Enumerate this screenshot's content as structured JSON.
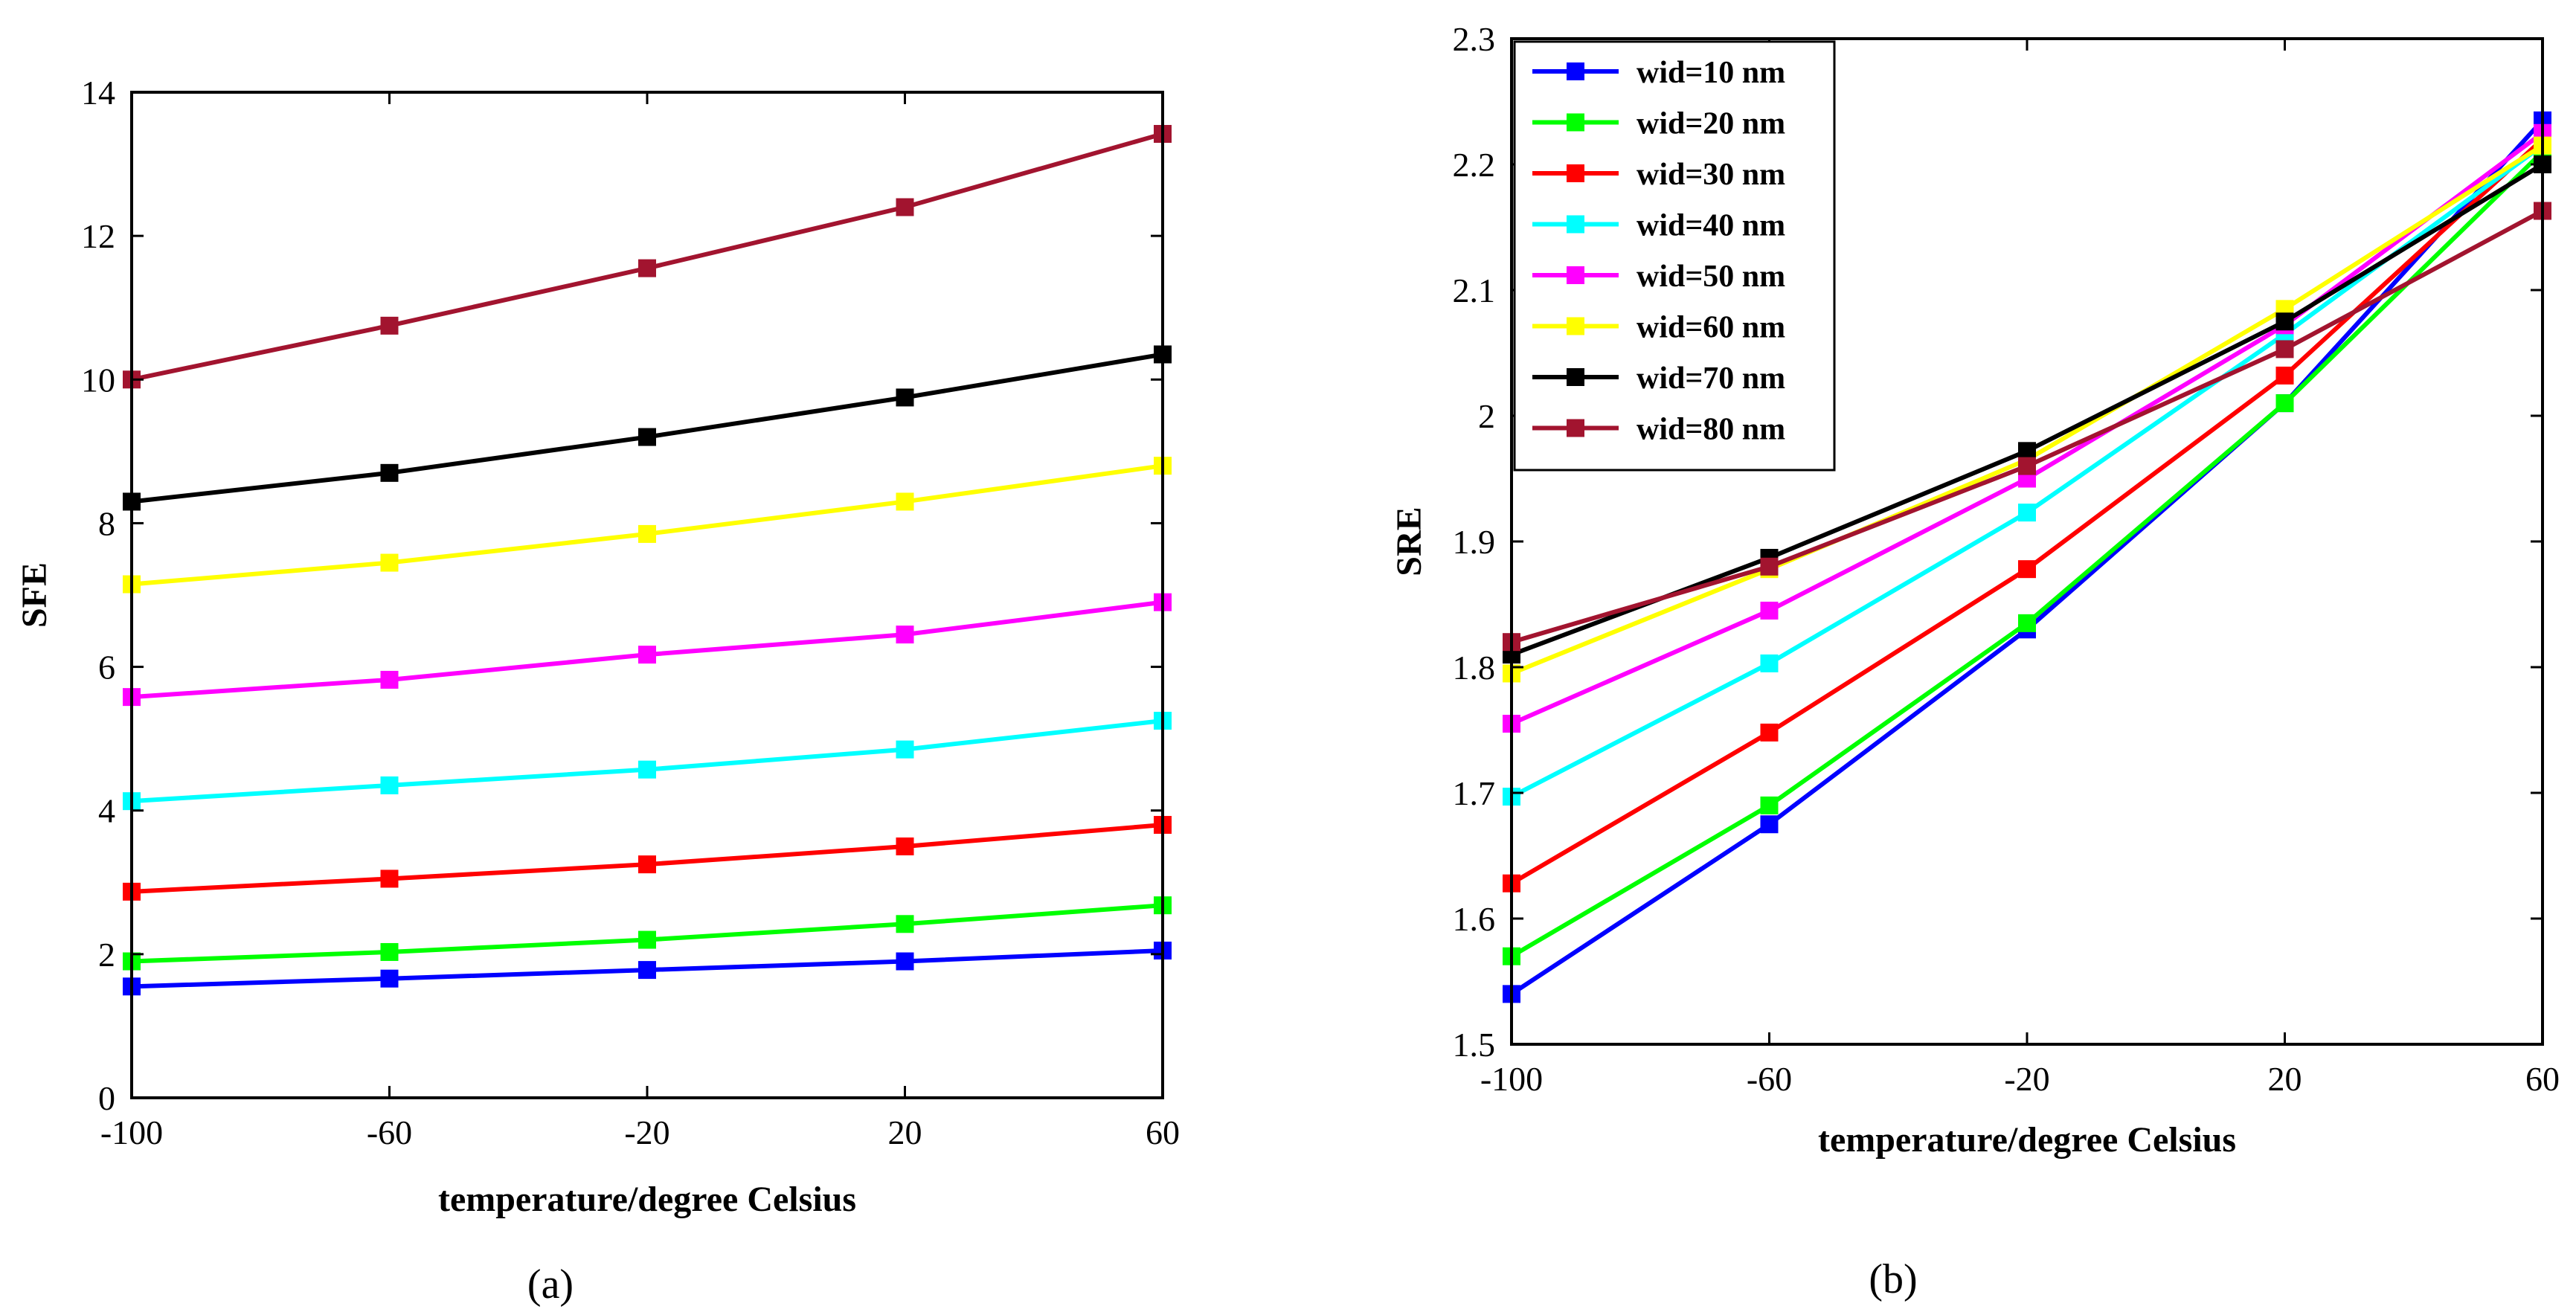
{
  "chart_data": [
    {
      "type": "line",
      "panel_label": "(a)",
      "title": "",
      "xlabel": "temperature/degree Celsius",
      "ylabel": "SFE",
      "x": [
        -100,
        -60,
        -20,
        20,
        60
      ],
      "xticks": [
        -100,
        -60,
        -20,
        20,
        60
      ],
      "xtick_labels": [
        "-100",
        "-60",
        "-20",
        "20",
        "60"
      ],
      "ylim": [
        0,
        14
      ],
      "yticks": [
        0,
        2,
        4,
        6,
        8,
        10,
        12,
        14
      ],
      "ytick_labels": [
        "0",
        "2",
        "4",
        "6",
        "8",
        "10",
        "12",
        "14"
      ],
      "grid": false,
      "legend": "none",
      "series": [
        {
          "name": "wid=10 nm",
          "color": "#0000ff",
          "values": [
            1.55,
            1.66,
            1.78,
            1.9,
            2.05
          ]
        },
        {
          "name": "wid=20 nm",
          "color": "#00ff00",
          "values": [
            1.9,
            2.03,
            2.2,
            2.42,
            2.68
          ]
        },
        {
          "name": "wid=30 nm",
          "color": "#ff0000",
          "values": [
            2.87,
            3.05,
            3.25,
            3.5,
            3.8
          ]
        },
        {
          "name": "wid=40 nm",
          "color": "#00ffff",
          "values": [
            4.13,
            4.35,
            4.57,
            4.85,
            5.25
          ]
        },
        {
          "name": "wid=50 nm",
          "color": "#ff00ff",
          "values": [
            5.58,
            5.82,
            6.17,
            6.45,
            6.9
          ]
        },
        {
          "name": "wid=60 nm",
          "color": "#ffff00",
          "values": [
            7.15,
            7.45,
            7.85,
            8.3,
            8.8
          ]
        },
        {
          "name": "wid=70 nm",
          "color": "#000000",
          "values": [
            8.3,
            8.7,
            9.2,
            9.75,
            10.35
          ]
        },
        {
          "name": "wid=80 nm",
          "color": "#a2142f",
          "values": [
            10.0,
            10.75,
            11.55,
            12.4,
            13.42
          ]
        }
      ]
    },
    {
      "type": "line",
      "panel_label": "(b)",
      "title": "",
      "xlabel": "temperature/degree Celsius",
      "ylabel": "SRE",
      "x": [
        -100,
        -60,
        -20,
        20,
        60
      ],
      "xticks": [
        -100,
        -60,
        -20,
        20,
        60
      ],
      "xtick_labels": [
        "-100",
        "-60",
        "-20",
        "20",
        "60"
      ],
      "ylim": [
        1.5,
        2.3
      ],
      "yticks": [
        1.5,
        1.6,
        1.7,
        1.8,
        1.9,
        2.0,
        2.1,
        2.2,
        2.3
      ],
      "ytick_labels": [
        "1.5",
        "1.6",
        "1.7",
        "1.8",
        "1.9",
        "2",
        "2.1",
        "2.2",
        "2.3"
      ],
      "grid": false,
      "legend": "top-left",
      "series": [
        {
          "name": "wid=10 nm",
          "color": "#0000ff",
          "values": [
            1.54,
            1.675,
            1.83,
            2.01,
            2.235
          ]
        },
        {
          "name": "wid=20 nm",
          "color": "#00ff00",
          "values": [
            1.57,
            1.69,
            1.835,
            2.01,
            2.21
          ]
        },
        {
          "name": "wid=30 nm",
          "color": "#ff0000",
          "values": [
            1.628,
            1.748,
            1.878,
            2.032,
            2.22
          ]
        },
        {
          "name": "wid=40 nm",
          "color": "#00ffff",
          "values": [
            1.697,
            1.803,
            1.923,
            2.065,
            2.215
          ]
        },
        {
          "name": "wid=50 nm",
          "color": "#ff00ff",
          "values": [
            1.755,
            1.845,
            1.95,
            2.072,
            2.225
          ]
        },
        {
          "name": "wid=60 nm",
          "color": "#ffff00",
          "values": [
            1.795,
            1.878,
            1.965,
            2.085,
            2.215
          ]
        },
        {
          "name": "wid=70 nm",
          "color": "#000000",
          "values": [
            1.81,
            1.887,
            1.972,
            2.075,
            2.2
          ]
        },
        {
          "name": "wid=80 nm",
          "color": "#a2142f",
          "values": [
            1.82,
            1.88,
            1.96,
            2.053,
            2.163
          ]
        }
      ]
    }
  ]
}
